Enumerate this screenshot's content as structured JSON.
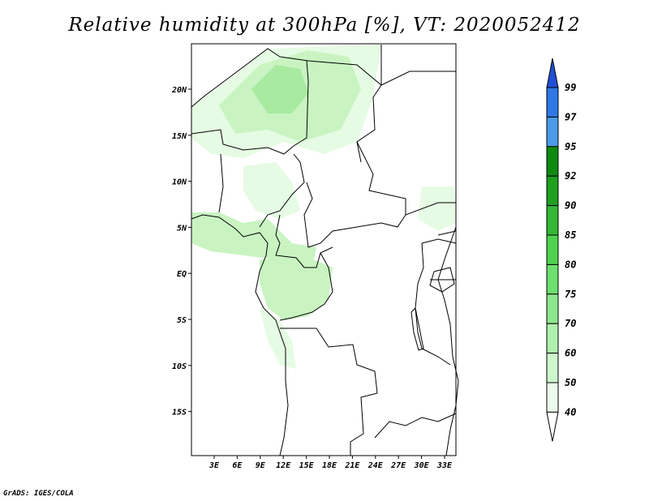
{
  "title": "Relative humidity at 300hPa [%], VT: 2020052412",
  "credit": "GrADS: IGES/COLA",
  "map": {
    "lat_ticks": [
      "20N",
      "15N",
      "10N",
      "5N",
      "EQ",
      "5S",
      "10S",
      "15S"
    ],
    "lon_ticks": [
      "3E",
      "6E",
      "9E",
      "12E",
      "15E",
      "18E",
      "21E",
      "24E",
      "27E",
      "30E",
      "33E"
    ]
  },
  "colorbar": {
    "levels": [
      "99",
      "97",
      "95",
      "92",
      "90",
      "85",
      "80",
      "75",
      "70",
      "60",
      "50",
      "40"
    ],
    "colors": [
      "#1f4fd6",
      "#2f78e6",
      "#4a9be8",
      "#0f8a0f",
      "#1fa01f",
      "#35b835",
      "#4fd34f",
      "#6de06d",
      "#8ee88e",
      "#aff0af",
      "#cdf6cd",
      "#ebfbeb"
    ]
  },
  "fill_colors": {
    "light": "#e6fbe3",
    "mid": "#c9f4c2",
    "strong": "#a8eaa0",
    "deep": "#8fdf88"
  }
}
